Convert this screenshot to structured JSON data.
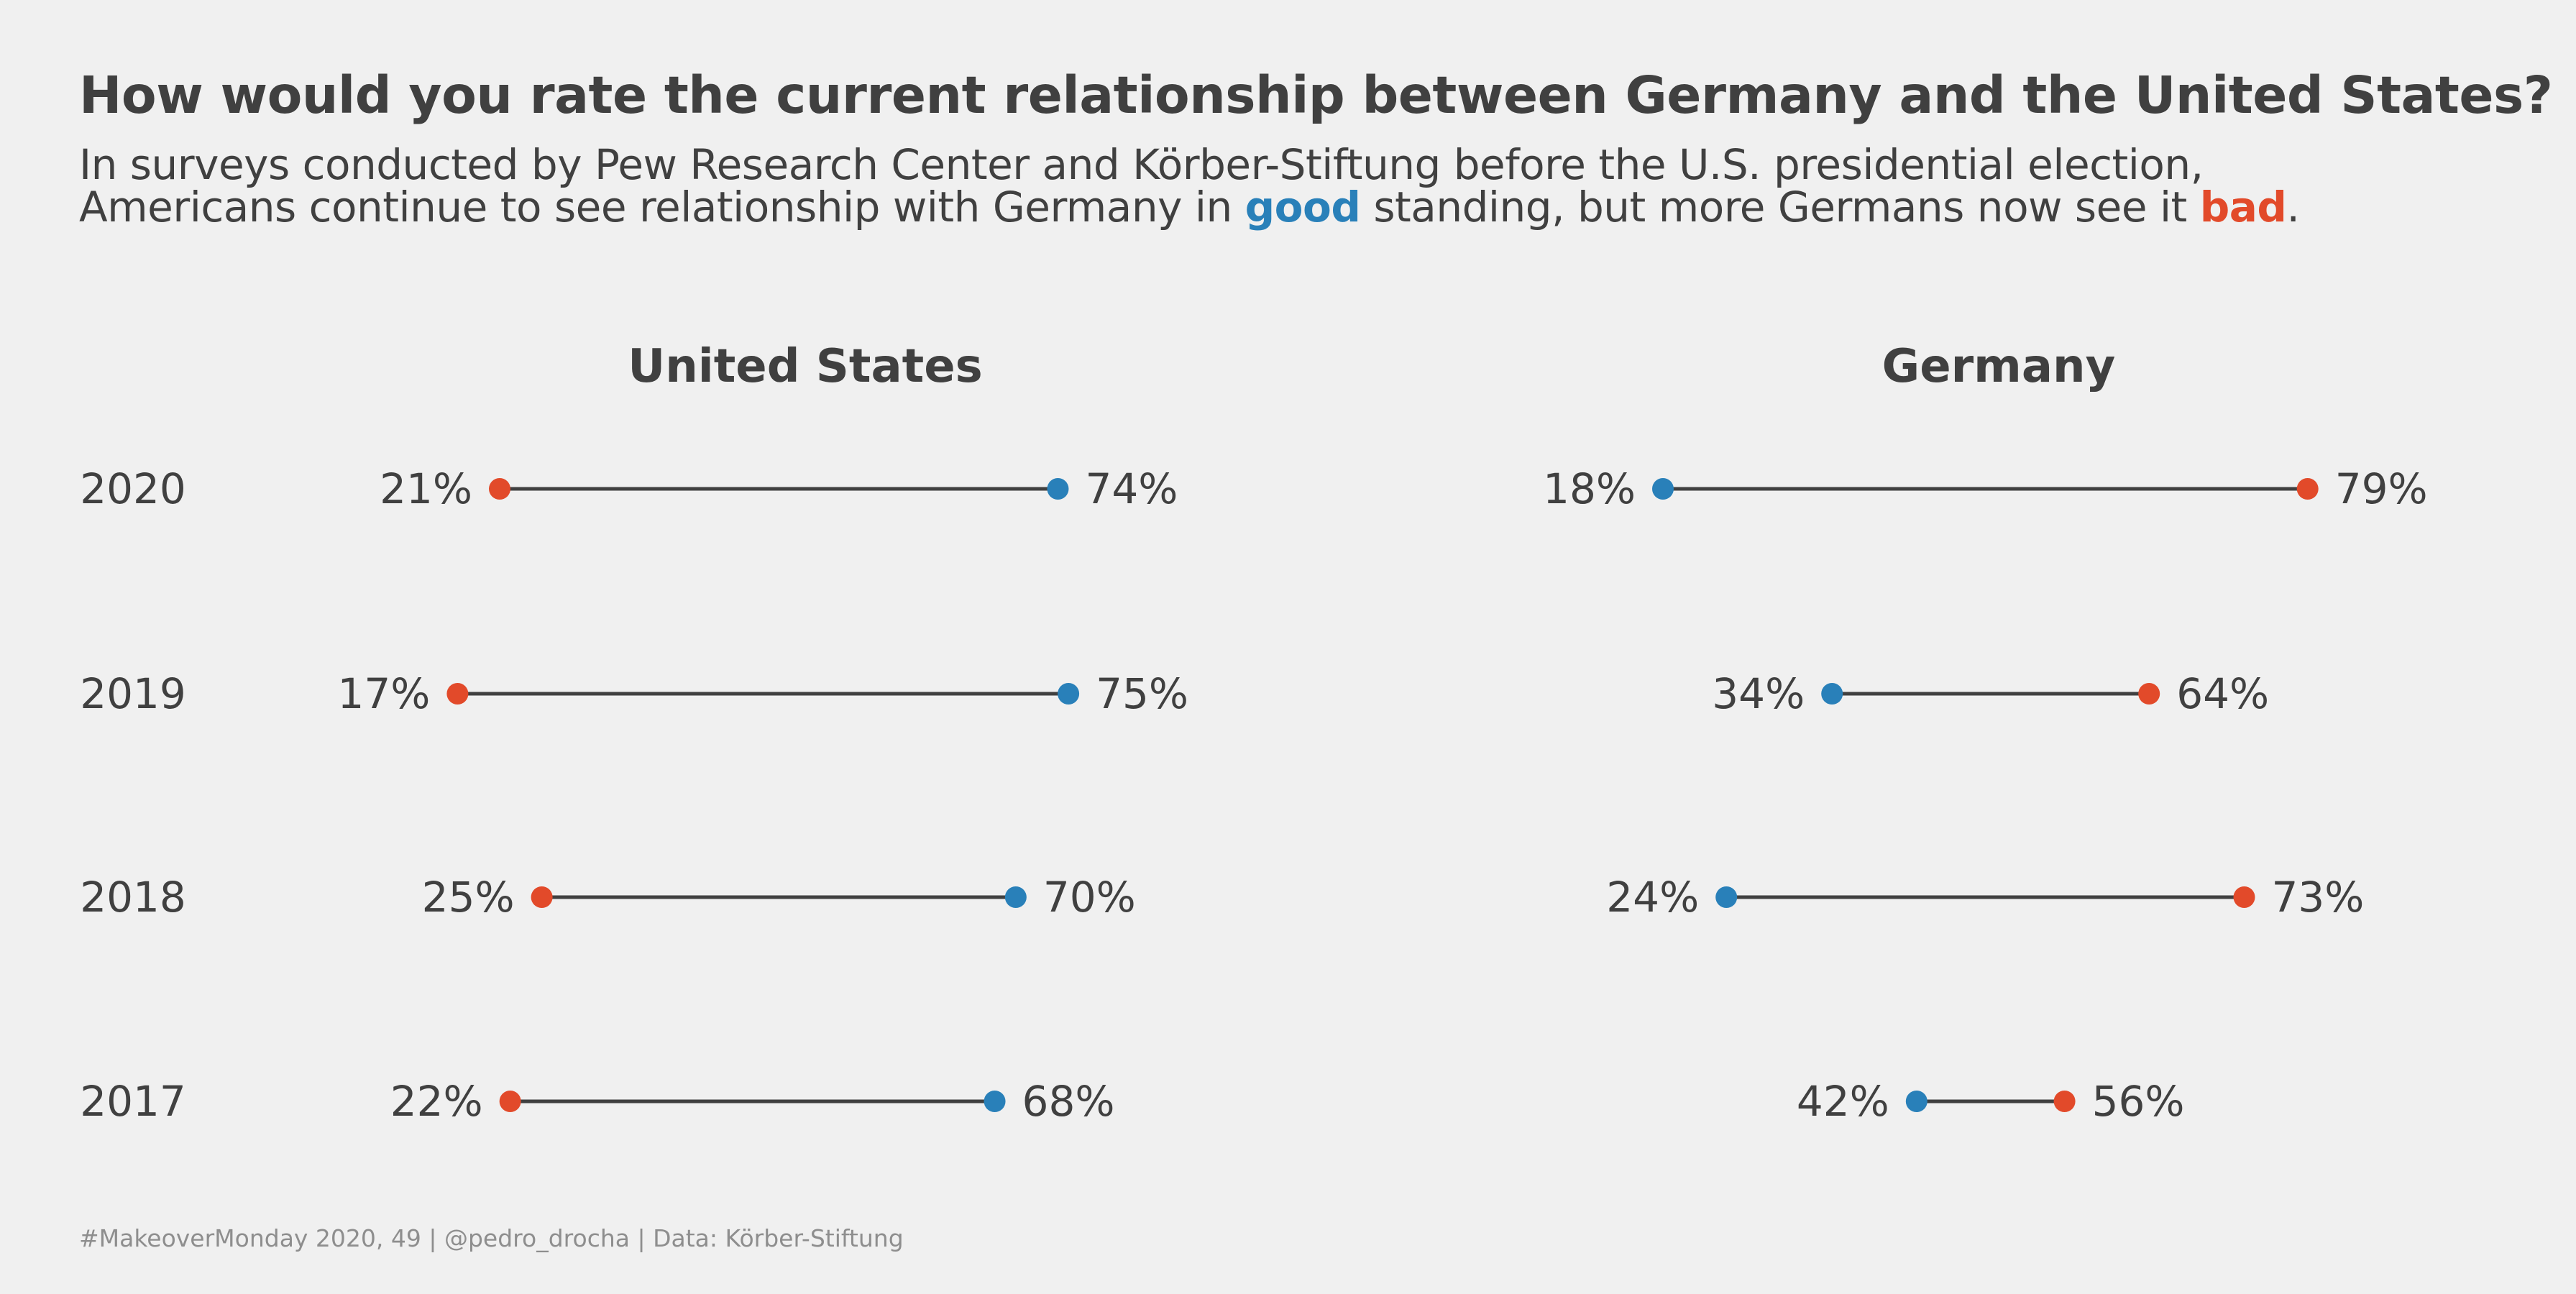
{
  "title": "How would you rate the current relationship between Germany and the United States?",
  "subtitle": {
    "line1": "In surveys conducted by Pew Research Center and Körber-Stiftung before the U.S. presidential election,",
    "line2_before": "Americans continue to see relationship with Germany in ",
    "good_word": "good",
    "line2_middle": " standing, but more Germans now see it ",
    "bad_word": "bad",
    "line2_end": "."
  },
  "footer": "#MakeoverMonday 2020, 49 | @pedro_drocha | Data: Körber-Stiftung",
  "colors": {
    "good": "#2980b9",
    "bad": "#e24a2a",
    "connector": "#404040",
    "background": "#f0f0f0",
    "text": "#404040"
  },
  "chart_data": {
    "type": "dumbbell",
    "years": [
      "2020",
      "2019",
      "2018",
      "2017"
    ],
    "panels": [
      {
        "title": "United States",
        "good": [
          74,
          75,
          70,
          68
        ],
        "bad": [
          21,
          17,
          25,
          22
        ]
      },
      {
        "title": "Germany",
        "good": [
          18,
          34,
          24,
          42
        ],
        "bad": [
          79,
          64,
          73,
          56
        ]
      }
    ]
  }
}
